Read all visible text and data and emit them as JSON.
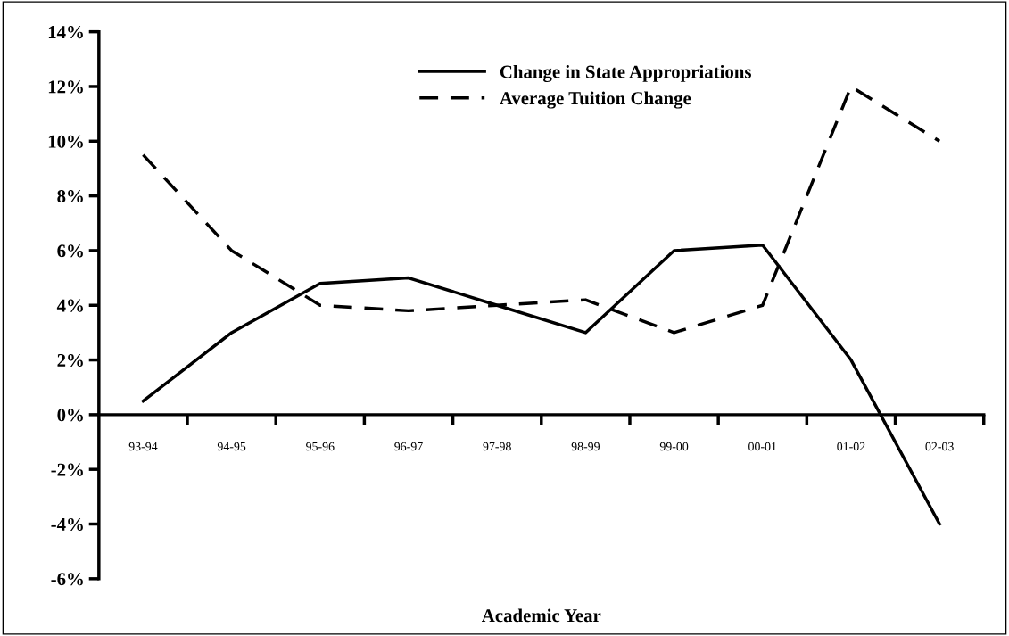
{
  "chart_data": {
    "type": "line",
    "xlabel": "Academic Year",
    "categories": [
      "93-94",
      "94-95",
      "95-96",
      "96-97",
      "97-98",
      "98-99",
      "99-00",
      "00-01",
      "01-02",
      "02-03"
    ],
    "series": [
      {
        "name": "Change in State Appropriations",
        "color": "#000000",
        "line_style": "solid",
        "values": [
          0.5,
          3,
          4.8,
          5,
          4,
          3,
          6,
          6.2,
          2,
          -4
        ]
      },
      {
        "name": "Average Tuition Change",
        "color": "#000000",
        "line_style": "dashed",
        "values": [
          9.5,
          6,
          4,
          3.8,
          4,
          4.2,
          3,
          4,
          12,
          10
        ]
      }
    ],
    "ylim": [
      -6,
      14
    ],
    "yticks": [
      {
        "value": -6,
        "label": "-6%"
      },
      {
        "value": -4,
        "label": "-4%"
      },
      {
        "value": -2,
        "label": "-2%"
      },
      {
        "value": 0,
        "label": "0%"
      },
      {
        "value": 2,
        "label": "2%"
      },
      {
        "value": 4,
        "label": "4%"
      },
      {
        "value": 6,
        "label": "6%"
      },
      {
        "value": 8,
        "label": "8%"
      },
      {
        "value": 10,
        "label": "10%"
      },
      {
        "value": 12,
        "label": "12%"
      },
      {
        "value": 14,
        "label": "14%"
      }
    ],
    "grid": false,
    "legend": "top",
    "marker": "none"
  }
}
